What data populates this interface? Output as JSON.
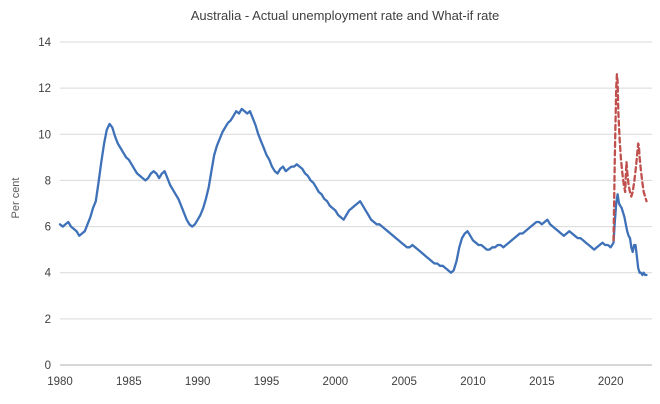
{
  "chart_data": {
    "type": "line",
    "title": "Australia - Actual unemployment rate and What-if rate",
    "xlabel": "",
    "ylabel": "Per cent",
    "xlim": [
      1980,
      2023
    ],
    "ylim": [
      0,
      14
    ],
    "x_ticks": [
      1980,
      1985,
      1990,
      1995,
      2000,
      2005,
      2010,
      2015,
      2020
    ],
    "y_ticks": [
      0,
      2,
      4,
      6,
      8,
      10,
      12,
      14
    ],
    "grid": "horizontal",
    "legend": "none",
    "colors": {
      "actual_line": "#3e71b8",
      "whatif_line": "#c0504d",
      "gridline": "#d9d9d9",
      "axis_line": "#bfbfbf",
      "tick_text": "#404040",
      "title_text": "#3f3f3f"
    },
    "series": [
      {
        "name": "Actual unemployment rate",
        "style": "solid",
        "color": "#3e71b8",
        "points": [
          [
            1980,
            6.1
          ],
          [
            1980.2,
            6.0
          ],
          [
            1980.4,
            6.1
          ],
          [
            1980.6,
            6.2
          ],
          [
            1980.8,
            6.0
          ],
          [
            1981,
            5.9
          ],
          [
            1981.2,
            5.8
          ],
          [
            1981.4,
            5.6
          ],
          [
            1981.6,
            5.7
          ],
          [
            1981.8,
            5.8
          ],
          [
            1982,
            6.1
          ],
          [
            1982.2,
            6.4
          ],
          [
            1982.4,
            6.8
          ],
          [
            1982.6,
            7.1
          ],
          [
            1982.8,
            7.9
          ],
          [
            1983,
            8.8
          ],
          [
            1983.2,
            9.6
          ],
          [
            1983.4,
            10.2
          ],
          [
            1983.6,
            10.45
          ],
          [
            1983.8,
            10.3
          ],
          [
            1984,
            9.9
          ],
          [
            1984.2,
            9.6
          ],
          [
            1984.4,
            9.4
          ],
          [
            1984.6,
            9.2
          ],
          [
            1984.8,
            9.0
          ],
          [
            1985,
            8.9
          ],
          [
            1985.2,
            8.7
          ],
          [
            1985.4,
            8.5
          ],
          [
            1985.6,
            8.3
          ],
          [
            1985.8,
            8.2
          ],
          [
            1986,
            8.1
          ],
          [
            1986.2,
            8.0
          ],
          [
            1986.4,
            8.1
          ],
          [
            1986.6,
            8.3
          ],
          [
            1986.8,
            8.4
          ],
          [
            1987,
            8.3
          ],
          [
            1987.2,
            8.1
          ],
          [
            1987.4,
            8.3
          ],
          [
            1987.6,
            8.4
          ],
          [
            1987.8,
            8.1
          ],
          [
            1988,
            7.8
          ],
          [
            1988.2,
            7.6
          ],
          [
            1988.4,
            7.4
          ],
          [
            1988.6,
            7.2
          ],
          [
            1988.8,
            6.9
          ],
          [
            1989,
            6.6
          ],
          [
            1989.2,
            6.3
          ],
          [
            1989.4,
            6.1
          ],
          [
            1989.6,
            6.0
          ],
          [
            1989.8,
            6.1
          ],
          [
            1990,
            6.3
          ],
          [
            1990.2,
            6.5
          ],
          [
            1990.4,
            6.8
          ],
          [
            1990.6,
            7.2
          ],
          [
            1990.8,
            7.7
          ],
          [
            1991,
            8.4
          ],
          [
            1991.2,
            9.1
          ],
          [
            1991.4,
            9.5
          ],
          [
            1991.6,
            9.8
          ],
          [
            1991.8,
            10.1
          ],
          [
            1992,
            10.3
          ],
          [
            1992.2,
            10.5
          ],
          [
            1992.4,
            10.6
          ],
          [
            1992.6,
            10.8
          ],
          [
            1992.8,
            11.0
          ],
          [
            1993,
            10.9
          ],
          [
            1993.2,
            11.1
          ],
          [
            1993.4,
            11.0
          ],
          [
            1993.6,
            10.9
          ],
          [
            1993.8,
            11.0
          ],
          [
            1994,
            10.7
          ],
          [
            1994.2,
            10.4
          ],
          [
            1994.4,
            10.0
          ],
          [
            1994.6,
            9.7
          ],
          [
            1994.8,
            9.4
          ],
          [
            1995,
            9.1
          ],
          [
            1995.2,
            8.9
          ],
          [
            1995.4,
            8.6
          ],
          [
            1995.6,
            8.4
          ],
          [
            1995.8,
            8.3
          ],
          [
            1996,
            8.5
          ],
          [
            1996.2,
            8.6
          ],
          [
            1996.4,
            8.4
          ],
          [
            1996.6,
            8.5
          ],
          [
            1996.8,
            8.6
          ],
          [
            1997,
            8.6
          ],
          [
            1997.2,
            8.7
          ],
          [
            1997.4,
            8.6
          ],
          [
            1997.6,
            8.5
          ],
          [
            1997.8,
            8.3
          ],
          [
            1998,
            8.2
          ],
          [
            1998.2,
            8.0
          ],
          [
            1998.4,
            7.9
          ],
          [
            1998.6,
            7.7
          ],
          [
            1998.8,
            7.5
          ],
          [
            1999,
            7.4
          ],
          [
            1999.2,
            7.2
          ],
          [
            1999.4,
            7.1
          ],
          [
            1999.6,
            6.9
          ],
          [
            1999.8,
            6.8
          ],
          [
            2000,
            6.7
          ],
          [
            2000.2,
            6.5
          ],
          [
            2000.4,
            6.4
          ],
          [
            2000.6,
            6.3
          ],
          [
            2000.8,
            6.5
          ],
          [
            2001,
            6.7
          ],
          [
            2001.2,
            6.8
          ],
          [
            2001.4,
            6.9
          ],
          [
            2001.6,
            7.0
          ],
          [
            2001.8,
            7.1
          ],
          [
            2002,
            6.9
          ],
          [
            2002.2,
            6.7
          ],
          [
            2002.4,
            6.5
          ],
          [
            2002.6,
            6.3
          ],
          [
            2002.8,
            6.2
          ],
          [
            2003,
            6.1
          ],
          [
            2003.2,
            6.1
          ],
          [
            2003.4,
            6.0
          ],
          [
            2003.6,
            5.9
          ],
          [
            2003.8,
            5.8
          ],
          [
            2004,
            5.7
          ],
          [
            2004.2,
            5.6
          ],
          [
            2004.4,
            5.5
          ],
          [
            2004.6,
            5.4
          ],
          [
            2004.8,
            5.3
          ],
          [
            2005,
            5.2
          ],
          [
            2005.2,
            5.1
          ],
          [
            2005.4,
            5.1
          ],
          [
            2005.6,
            5.2
          ],
          [
            2005.8,
            5.1
          ],
          [
            2006,
            5.0
          ],
          [
            2006.2,
            4.9
          ],
          [
            2006.4,
            4.8
          ],
          [
            2006.6,
            4.7
          ],
          [
            2006.8,
            4.6
          ],
          [
            2007,
            4.5
          ],
          [
            2007.2,
            4.4
          ],
          [
            2007.4,
            4.4
          ],
          [
            2007.6,
            4.3
          ],
          [
            2007.8,
            4.3
          ],
          [
            2008,
            4.2
          ],
          [
            2008.2,
            4.1
          ],
          [
            2008.4,
            4.0
          ],
          [
            2008.6,
            4.1
          ],
          [
            2008.8,
            4.5
          ],
          [
            2009,
            5.1
          ],
          [
            2009.2,
            5.5
          ],
          [
            2009.4,
            5.7
          ],
          [
            2009.6,
            5.8
          ],
          [
            2009.8,
            5.6
          ],
          [
            2010,
            5.4
          ],
          [
            2010.2,
            5.3
          ],
          [
            2010.4,
            5.2
          ],
          [
            2010.6,
            5.2
          ],
          [
            2010.8,
            5.1
          ],
          [
            2011,
            5.0
          ],
          [
            2011.2,
            5.0
          ],
          [
            2011.4,
            5.1
          ],
          [
            2011.6,
            5.1
          ],
          [
            2011.8,
            5.2
          ],
          [
            2012,
            5.2
          ],
          [
            2012.2,
            5.1
          ],
          [
            2012.4,
            5.2
          ],
          [
            2012.6,
            5.3
          ],
          [
            2012.8,
            5.4
          ],
          [
            2013,
            5.5
          ],
          [
            2013.2,
            5.6
          ],
          [
            2013.4,
            5.7
          ],
          [
            2013.6,
            5.7
          ],
          [
            2013.8,
            5.8
          ],
          [
            2014,
            5.9
          ],
          [
            2014.2,
            6.0
          ],
          [
            2014.4,
            6.1
          ],
          [
            2014.6,
            6.2
          ],
          [
            2014.8,
            6.2
          ],
          [
            2015,
            6.1
          ],
          [
            2015.2,
            6.2
          ],
          [
            2015.4,
            6.3
          ],
          [
            2015.6,
            6.1
          ],
          [
            2015.8,
            6.0
          ],
          [
            2016,
            5.9
          ],
          [
            2016.2,
            5.8
          ],
          [
            2016.4,
            5.7
          ],
          [
            2016.6,
            5.6
          ],
          [
            2016.8,
            5.7
          ],
          [
            2017,
            5.8
          ],
          [
            2017.2,
            5.7
          ],
          [
            2017.4,
            5.6
          ],
          [
            2017.6,
            5.5
          ],
          [
            2017.8,
            5.5
          ],
          [
            2018,
            5.4
          ],
          [
            2018.2,
            5.3
          ],
          [
            2018.4,
            5.2
          ],
          [
            2018.6,
            5.1
          ],
          [
            2018.8,
            5.0
          ],
          [
            2019,
            5.1
          ],
          [
            2019.2,
            5.2
          ],
          [
            2019.4,
            5.3
          ],
          [
            2019.6,
            5.2
          ],
          [
            2019.8,
            5.2
          ],
          [
            2020,
            5.1
          ],
          [
            2020.1,
            5.2
          ],
          [
            2020.2,
            5.3
          ],
          [
            2020.3,
            6.2
          ],
          [
            2020.4,
            7.0
          ],
          [
            2020.5,
            7.4
          ],
          [
            2020.6,
            7.0
          ],
          [
            2020.7,
            6.9
          ],
          [
            2020.8,
            6.8
          ],
          [
            2020.9,
            6.6
          ],
          [
            2021,
            6.4
          ],
          [
            2021.1,
            6.1
          ],
          [
            2021.2,
            5.8
          ],
          [
            2021.3,
            5.6
          ],
          [
            2021.4,
            5.5
          ],
          [
            2021.5,
            5.1
          ],
          [
            2021.6,
            4.9
          ],
          [
            2021.7,
            5.2
          ],
          [
            2021.8,
            5.2
          ],
          [
            2021.9,
            4.7
          ],
          [
            2022,
            4.2
          ],
          [
            2022.1,
            4.0
          ],
          [
            2022.2,
            4.0
          ],
          [
            2022.3,
            3.9
          ],
          [
            2022.4,
            4.0
          ],
          [
            2022.5,
            3.9
          ],
          [
            2022.6,
            3.9
          ]
        ]
      },
      {
        "name": "What-if rate",
        "style": "dashed",
        "color": "#c0504d",
        "points": [
          [
            2020.2,
            5.4
          ],
          [
            2020.25,
            6.9
          ],
          [
            2020.3,
            9.0
          ],
          [
            2020.4,
            12.0
          ],
          [
            2020.45,
            12.6
          ],
          [
            2020.5,
            12.3
          ],
          [
            2020.55,
            11.0
          ],
          [
            2020.65,
            9.8
          ],
          [
            2020.75,
            8.9
          ],
          [
            2020.85,
            8.3
          ],
          [
            2020.95,
            7.8
          ],
          [
            2021.05,
            7.5
          ],
          [
            2021.1,
            8.2
          ],
          [
            2021.15,
            8.8
          ],
          [
            2021.2,
            8.4
          ],
          [
            2021.3,
            7.8
          ],
          [
            2021.4,
            7.5
          ],
          [
            2021.5,
            7.3
          ],
          [
            2021.6,
            7.5
          ],
          [
            2021.7,
            7.9
          ],
          [
            2021.8,
            8.4
          ],
          [
            2021.9,
            9.0
          ],
          [
            2022,
            9.6
          ],
          [
            2022.05,
            9.5
          ],
          [
            2022.1,
            9.0
          ],
          [
            2022.2,
            8.4
          ],
          [
            2022.3,
            7.9
          ],
          [
            2022.4,
            7.5
          ],
          [
            2022.5,
            7.3
          ],
          [
            2022.6,
            7.1
          ]
        ]
      }
    ]
  }
}
